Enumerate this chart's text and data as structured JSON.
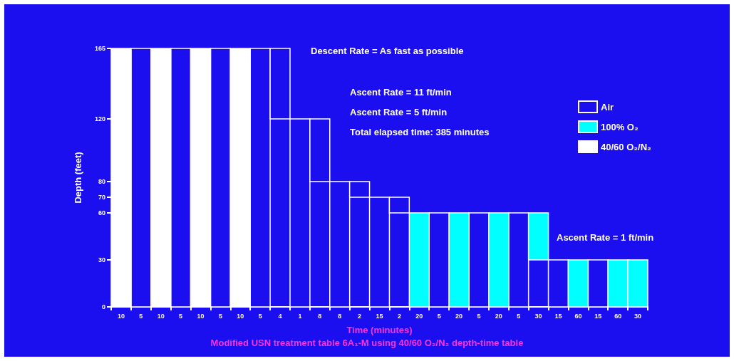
{
  "chart_data": {
    "type": "bar",
    "xlabel": "Time (minutes)",
    "ylabel": "Depth (feet)",
    "annotations": [
      "Descent Rate =  As fast as possible",
      "Ascent Rate =  11 ft/min",
      "Ascent Rate =  5 ft/min",
      "Total elapsed time: 385 minutes",
      "Ascent Rate =  1 ft/min",
      "Modified USN treatment table 6A₁-M using 40/60 O₂/N₂ depth-time table"
    ],
    "categories": [
      "10",
      "5",
      "10",
      "5",
      "10",
      "5",
      "10",
      "5",
      "4",
      "1",
      "8",
      "8",
      "2",
      "15",
      "2",
      "20",
      "5",
      "20",
      "5",
      "20",
      "5",
      "30",
      "15",
      "60",
      "15",
      "60",
      "30"
    ],
    "series": [
      {
        "name": "Air",
        "color": "#1b0ff0",
        "values": [
          null,
          165,
          null,
          165,
          null,
          165,
          null,
          165,
          45,
          120,
          40,
          80,
          10,
          70,
          10,
          null,
          60,
          null,
          60,
          null,
          60,
          null,
          30,
          null,
          30,
          null,
          null
        ],
        "base": [
          null,
          0,
          null,
          0,
          null,
          0,
          null,
          0,
          120,
          0,
          80,
          0,
          70,
          0,
          60,
          null,
          0,
          null,
          0,
          null,
          0,
          null,
          0,
          null,
          0,
          null,
          null
        ]
      },
      {
        "name": "100% O₂",
        "color": "#00ffff",
        "values": [
          null,
          null,
          null,
          null,
          null,
          null,
          null,
          null,
          null,
          null,
          null,
          null,
          null,
          null,
          null,
          60,
          null,
          60,
          null,
          60,
          null,
          30,
          null,
          30,
          null,
          30,
          30
        ],
        "base": [
          null,
          null,
          null,
          null,
          null,
          null,
          null,
          null,
          null,
          null,
          null,
          null,
          null,
          null,
          null,
          0,
          null,
          0,
          null,
          0,
          null,
          30,
          null,
          0,
          null,
          0,
          0
        ]
      },
      {
        "name": "40/60 O₂/N₂",
        "color": "#ffffff",
        "values": [
          165,
          null,
          165,
          null,
          165,
          null,
          165,
          null,
          null,
          null,
          null,
          null,
          null,
          null,
          null,
          null,
          null,
          null,
          null,
          null,
          null,
          null,
          null,
          null,
          null,
          null,
          null
        ],
        "base": [
          0,
          null,
          0,
          null,
          0,
          null,
          0,
          null,
          null,
          null,
          null,
          null,
          null,
          null,
          null,
          null,
          null,
          null,
          null,
          null,
          null,
          null,
          null,
          null,
          null,
          null,
          null
        ]
      }
    ],
    "ylim": [
      0,
      165
    ],
    "yticks": [
      0,
      30,
      60,
      70,
      80,
      120,
      165
    ],
    "grid": false,
    "legend": "top"
  }
}
